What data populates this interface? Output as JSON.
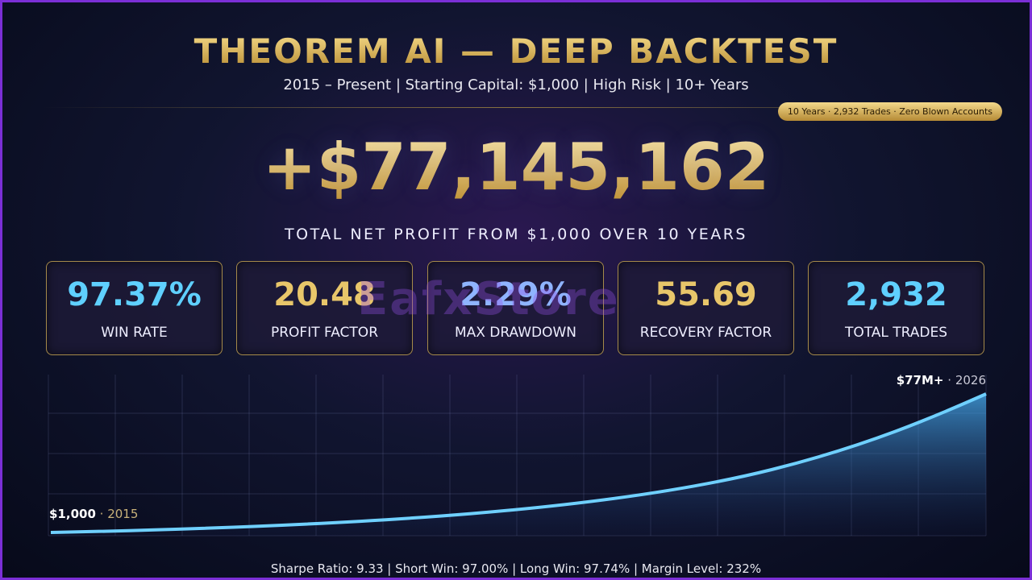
{
  "header": {
    "title": "THEOREM AI — DEEP BACKTEST",
    "subtitle": "2015 – Present | Starting Capital: $1,000 | High Risk | 10+ Years"
  },
  "badge": "10 Years · 2,932 Trades · Zero Blown Accounts",
  "headline": {
    "value": "+$77,145,162",
    "caption": "TOTAL NET PROFIT FROM $1,000 OVER 10 YEARS"
  },
  "stats": [
    {
      "value": "97.37%",
      "label": "WIN RATE",
      "color": "#5fd0ff"
    },
    {
      "value": "20.48",
      "label": "PROFIT FACTOR",
      "color": "#e8c66a"
    },
    {
      "value": "2.29%",
      "label": "MAX DRAWDOWN",
      "color": "#8fb4ff"
    },
    {
      "value": "55.69",
      "label": "RECOVERY FACTOR",
      "color": "#e8c66a"
    },
    {
      "value": "2,932",
      "label": "TOTAL TRADES",
      "color": "#5fd0ff"
    }
  ],
  "watermark": "EafxStore",
  "curve": {
    "start_value": "$1,000",
    "start_year": "· 2015",
    "end_value": "$77M+",
    "end_year": "· 2026"
  },
  "footer": "Sharpe Ratio: 9.33 | Short Win: 97.00% | Long Win: 97.74% | Margin Level: 232%"
}
